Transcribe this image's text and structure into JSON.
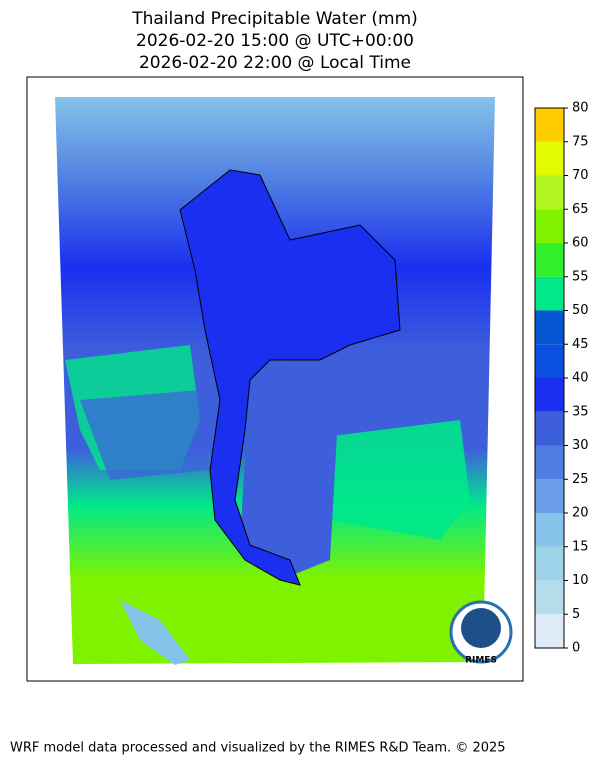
{
  "title": [
    "Thailand Precipitable Water (mm)",
    "2026-02-20 15:00 @ UTC+00:00",
    "2026-02-20 22:00 @ Local Time"
  ],
  "colorbar": {
    "lim": [
      0,
      80
    ],
    "ticks": [
      0,
      5,
      10,
      15,
      20,
      25,
      30,
      35,
      40,
      45,
      50,
      55,
      60,
      65,
      70,
      75,
      80
    ],
    "colors": [
      "#deebf7",
      "#b5dcea",
      "#9ed2e8",
      "#86c3ea",
      "#6a9ee9",
      "#4f7ee2",
      "#3d5fdc",
      "#1a2ff0",
      "#0b4fe0",
      "#0356cf",
      "#00e88a",
      "#32ef2c",
      "#7ff200",
      "#b2f521",
      "#e2fb00",
      "#ffcc00"
    ]
  },
  "logo": "RIMES",
  "footer": "WRF model data processed and visualized by the RIMES R&D Team. © 2025"
}
